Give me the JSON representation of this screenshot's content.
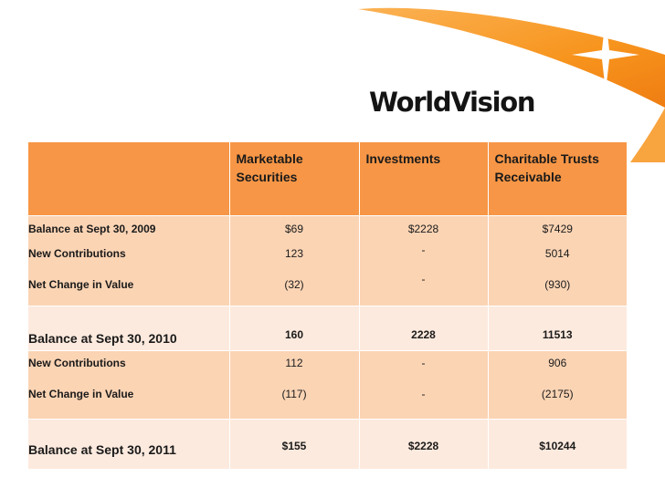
{
  "logo": {
    "text": "WorldVision"
  },
  "colors": {
    "header": "#f79646",
    "band_dark": "#fbd4b4",
    "band_light": "#fdeade",
    "swoosh": "#f7941d"
  },
  "table": {
    "headers": {
      "label": "",
      "marketable_securities": "Marketable Securities",
      "investments": "Investments",
      "charitable_trusts": "Charitable Trusts Receivable"
    },
    "rows": [
      {
        "label": "Balance at Sept 30, 2009",
        "marketable": "$69",
        "investments": "$2228",
        "trusts": "$7429"
      },
      {
        "label": "New Contributions",
        "marketable": "123",
        "investments": "-",
        "trusts": "5014"
      },
      {
        "label": "Net Change in Value",
        "marketable": "(32)",
        "investments": "-",
        "trusts": "(930)"
      },
      {
        "label": "Balance at Sept 30, 2010",
        "marketable": "160",
        "investments": "2228",
        "trusts": "11513"
      },
      {
        "label": "New Contributions",
        "marketable": "112",
        "investments": "-",
        "trusts": "906"
      },
      {
        "label": "Net Change in Value",
        "marketable": "(117)",
        "investments": "-",
        "trusts": "(2175)"
      },
      {
        "label": "Balance at Sept 30, 2011",
        "marketable": "$155",
        "investments": "$2228",
        "trusts": "$10244"
      }
    ]
  }
}
